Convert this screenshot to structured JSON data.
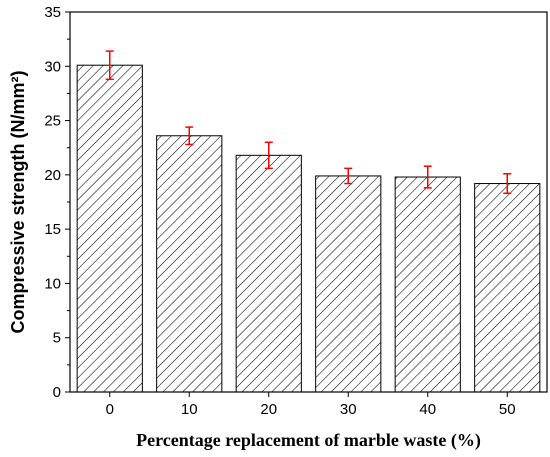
{
  "chart_data": {
    "type": "bar",
    "categories": [
      "0",
      "10",
      "20",
      "30",
      "40",
      "50"
    ],
    "values": [
      30.1,
      23.6,
      21.8,
      19.9,
      19.8,
      19.2
    ],
    "error": [
      1.3,
      0.8,
      1.2,
      0.7,
      1.0,
      0.9
    ],
    "xlabel": "Percentage replacement of marble waste (%)",
    "ylabel": "Compressive strength (N/mm²)",
    "ylim": [
      0,
      35
    ],
    "yticks": [
      0,
      5,
      10,
      15,
      20,
      25,
      30,
      35
    ],
    "grid": false,
    "bar_fill": "hatched",
    "colors": {
      "bar_edge": "#000000",
      "hatch": "#000000",
      "error_bar": "#ff0000",
      "axis": "#000000"
    }
  }
}
